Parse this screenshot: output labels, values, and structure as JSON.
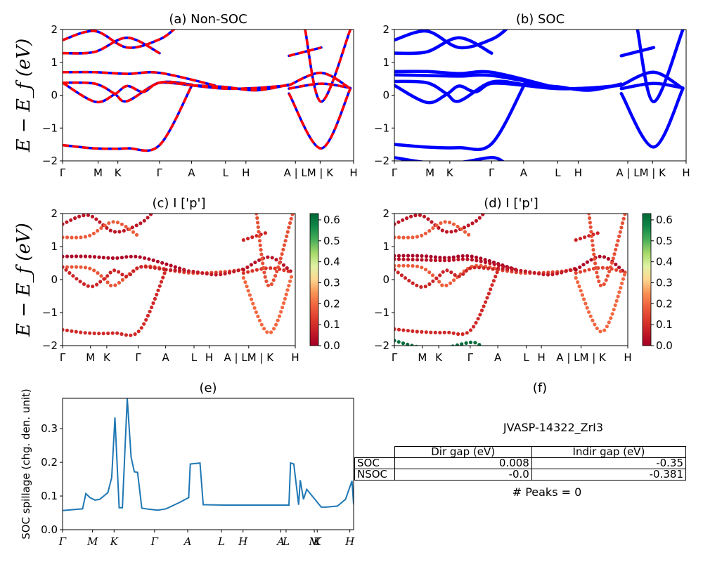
{
  "chart_data": [
    {
      "id": "a",
      "type": "line",
      "title": "(a) Non-SOC",
      "ylabel": "E − E_f (eV)",
      "ylim": [
        -2,
        2
      ],
      "yticks": [
        "2",
        "1",
        "0",
        "−1",
        "−2"
      ],
      "xticks": [
        "Γ",
        "M",
        "K",
        "Γ",
        "A",
        "L",
        "H",
        "A | L",
        "M | K",
        "H"
      ],
      "series": [
        {
          "color": "#0000ff",
          "style": "solid",
          "bands": [
            {
              "x": [
                0,
                1,
                2,
                3,
                3.5
              ],
              "y": [
                1.68,
                1.95,
                1.45,
                1.7,
                2.05
              ]
            },
            {
              "x": [
                0,
                1,
                2,
                3
              ],
              "y": [
                1.28,
                1.32,
                1.75,
                1.28
              ]
            },
            {
              "x": [
                0,
                1,
                2,
                3,
                4.7
              ],
              "y": [
                0.7,
                0.7,
                0.65,
                0.68,
                0.3
              ]
            },
            {
              "x": [
                0,
                1,
                1.6,
                2,
                3,
                4
              ],
              "y": [
                0.38,
                0.35,
                0.05,
                -0.18,
                0.38,
                0.32
              ]
            },
            {
              "x": [
                0,
                1,
                1.6,
                2,
                2.5,
                3,
                4
              ],
              "y": [
                0.38,
                -0.2,
                0.02,
                0.28,
                0.1,
                0.38,
                0.3
              ]
            },
            {
              "x": [
                0,
                1,
                2,
                3,
                4
              ],
              "y": [
                -1.52,
                -1.62,
                -1.62,
                -1.52,
                0.3
              ]
            },
            {
              "x": [
                4,
                5,
                6,
                7
              ],
              "y": [
                0.3,
                0.2,
                0.22,
                0.3
              ]
            },
            {
              "x": [
                4,
                5,
                6,
                7
              ],
              "y": [
                0.3,
                0.25,
                0.15,
                0.32
              ]
            },
            {
              "x": [
                7,
                8,
                8.9
              ],
              "y": [
                0.3,
                0.68,
                0.2
              ]
            },
            {
              "x": [
                7,
                8,
                8.9
              ],
              "y": [
                0.2,
                0.35,
                0.22
              ]
            },
            {
              "x": [
                7,
                8,
                8.9
              ],
              "y": [
                0.05,
                -1.62,
                0.2
              ]
            },
            {
              "x": [
                7,
                8
              ],
              "y": [
                1.2,
                1.45
              ]
            },
            {
              "x": [
                7.5,
                8,
                8.9
              ],
              "y": [
                2.0,
                -0.2,
                2.0
              ]
            }
          ]
        },
        {
          "color": "#ff0000",
          "style": "dashed",
          "same_bands_as": 0
        }
      ]
    },
    {
      "id": "b",
      "type": "line",
      "title": "(b) SOC",
      "ylim": [
        -2,
        2
      ],
      "yticks": [
        "2",
        "1",
        "0",
        "−1",
        "−2"
      ],
      "xticks": [
        "Γ",
        "M",
        "K",
        "Γ",
        "A",
        "L",
        "H",
        "A | L",
        "M | K",
        "H"
      ],
      "series": [
        {
          "color": "#0000ff",
          "style": "thick",
          "bands": [
            {
              "x": [
                0,
                1,
                2,
                3,
                3.5
              ],
              "y": [
                1.68,
                1.95,
                1.45,
                1.7,
                2.05
              ]
            },
            {
              "x": [
                0,
                1,
                2,
                3
              ],
              "y": [
                1.28,
                1.32,
                1.75,
                1.28
              ]
            },
            {
              "x": [
                0,
                1,
                2,
                3,
                4.7
              ],
              "y": [
                0.72,
                0.72,
                0.66,
                0.7,
                0.3
              ]
            },
            {
              "x": [
                0,
                1,
                2,
                3,
                4.7
              ],
              "y": [
                0.62,
                0.6,
                0.58,
                0.6,
                0.3
              ]
            },
            {
              "x": [
                0,
                1,
                1.6,
                2,
                3,
                4
              ],
              "y": [
                0.42,
                0.38,
                0.05,
                -0.18,
                0.4,
                0.32
              ]
            },
            {
              "x": [
                0,
                1,
                1.6,
                2,
                2.5,
                3,
                4
              ],
              "y": [
                0.3,
                -0.22,
                0.02,
                0.28,
                0.1,
                0.36,
                0.3
              ]
            },
            {
              "x": [
                0,
                1,
                2,
                3,
                4
              ],
              "y": [
                -1.5,
                -1.58,
                -1.6,
                -1.48,
                0.3
              ]
            },
            {
              "x": [
                0,
                1,
                2,
                3,
                3.4
              ],
              "y": [
                -1.9,
                -2.05,
                -2.05,
                -1.9,
                -2.05
              ]
            },
            {
              "x": [
                4,
                5,
                6,
                7
              ],
              "y": [
                0.3,
                0.2,
                0.22,
                0.3
              ]
            },
            {
              "x": [
                4,
                5,
                6,
                7
              ],
              "y": [
                0.34,
                0.26,
                0.15,
                0.34
              ]
            },
            {
              "x": [
                7,
                8,
                8.9
              ],
              "y": [
                0.3,
                0.7,
                0.2
              ]
            },
            {
              "x": [
                7,
                8,
                8.9
              ],
              "y": [
                0.2,
                0.36,
                0.22
              ]
            },
            {
              "x": [
                7,
                8,
                8.9
              ],
              "y": [
                0.05,
                -1.58,
                0.2
              ]
            },
            {
              "x": [
                7,
                8
              ],
              "y": [
                1.2,
                1.45
              ]
            },
            {
              "x": [
                7.5,
                8,
                8.9
              ],
              "y": [
                2.0,
                -0.2,
                2.0
              ]
            }
          ]
        }
      ]
    },
    {
      "id": "c",
      "type": "scatter",
      "title": "(c)  I ['p']",
      "ylabel": "E − E_f (eV)",
      "ylim": [
        -2,
        2
      ],
      "yticks": [
        "2",
        "1",
        "0",
        "−1",
        "−2"
      ],
      "xticks": [
        "Γ",
        "M",
        "K",
        "Γ",
        "A",
        "L",
        "H",
        "A | LM | K",
        "H"
      ],
      "colorbar": {
        "ticks": [
          "0.6",
          "0.5",
          "0.4",
          "0.3",
          "0.2",
          "0.1",
          "0.0"
        ],
        "range": [
          0,
          0.63
        ],
        "cmap": "RdYlGn"
      },
      "bands": [
        {
          "x": [
            0,
            1,
            2,
            3,
            3.5
          ],
          "y": [
            1.68,
            1.95,
            1.45,
            1.7,
            2.05
          ],
          "value": 0.05
        },
        {
          "x": [
            0,
            1,
            2,
            3
          ],
          "y": [
            1.28,
            1.32,
            1.75,
            1.28
          ],
          "value": 0.18
        },
        {
          "x": [
            0,
            1,
            2,
            3,
            4.7
          ],
          "y": [
            0.7,
            0.7,
            0.65,
            0.68,
            0.3
          ],
          "value": 0.02
        },
        {
          "x": [
            0,
            1,
            1.6,
            2,
            3,
            4
          ],
          "y": [
            0.38,
            0.35,
            0.05,
            -0.18,
            0.38,
            0.32
          ],
          "value": 0.17
        },
        {
          "x": [
            0,
            1,
            1.6,
            2,
            2.5,
            3,
            4
          ],
          "y": [
            0.38,
            -0.2,
            0.02,
            0.28,
            0.1,
            0.38,
            0.3
          ],
          "value": 0.08
        },
        {
          "x": [
            0,
            1,
            2,
            3,
            4
          ],
          "y": [
            -1.52,
            -1.62,
            -1.62,
            -1.52,
            0.3
          ],
          "value": 0.09
        },
        {
          "x": [
            4,
            5,
            6,
            7
          ],
          "y": [
            0.3,
            0.2,
            0.22,
            0.3
          ],
          "value": 0.14
        },
        {
          "x": [
            4,
            5,
            6,
            7
          ],
          "y": [
            0.3,
            0.25,
            0.15,
            0.32
          ],
          "value": 0.06
        },
        {
          "x": [
            7,
            8,
            8.9
          ],
          "y": [
            0.3,
            0.68,
            0.2
          ],
          "value": 0.04
        },
        {
          "x": [
            7,
            8,
            8.9
          ],
          "y": [
            0.2,
            0.35,
            0.22
          ],
          "value": 0.11
        },
        {
          "x": [
            7,
            8,
            8.9
          ],
          "y": [
            0.05,
            -1.62,
            0.2
          ],
          "value": 0.2
        },
        {
          "x": [
            7,
            8
          ],
          "y": [
            1.2,
            1.45
          ],
          "value": 0.08
        },
        {
          "x": [
            7.5,
            8,
            8.9
          ],
          "y": [
            2.0,
            -0.2,
            2.0
          ],
          "value": 0.16
        }
      ]
    },
    {
      "id": "d",
      "type": "scatter",
      "title": "(d) I ['p']",
      "ylim": [
        -2,
        2
      ],
      "yticks": [
        "2",
        "1",
        "0",
        "−1",
        "−2"
      ],
      "xticks": [
        "Γ",
        "M",
        "K",
        "Γ",
        "A",
        "L",
        "H",
        "A | LM | K",
        "H"
      ],
      "colorbar": {
        "ticks": [
          "0.6",
          "0.5",
          "0.4",
          "0.3",
          "0.2",
          "0.1",
          "0.0"
        ],
        "range": [
          0,
          0.63
        ],
        "cmap": "RdYlGn"
      },
      "bands": [
        {
          "x": [
            0,
            1,
            2,
            3,
            3.5
          ],
          "y": [
            1.68,
            1.95,
            1.45,
            1.7,
            2.05
          ],
          "value": 0.05
        },
        {
          "x": [
            0,
            1,
            2,
            3
          ],
          "y": [
            1.28,
            1.32,
            1.75,
            1.28
          ],
          "value": 0.18
        },
        {
          "x": [
            0,
            1,
            2,
            3,
            4.7
          ],
          "y": [
            0.72,
            0.72,
            0.66,
            0.7,
            0.3
          ],
          "value": 0.01
        },
        {
          "x": [
            0,
            1,
            2,
            3,
            4.7
          ],
          "y": [
            0.62,
            0.6,
            0.58,
            0.6,
            0.3
          ],
          "value": 0.04
        },
        {
          "x": [
            0,
            1,
            1.6,
            2,
            3,
            4
          ],
          "y": [
            0.42,
            0.38,
            0.05,
            -0.18,
            0.4,
            0.32
          ],
          "value": 0.18
        },
        {
          "x": [
            0,
            1,
            1.6,
            2,
            2.5,
            3,
            4
          ],
          "y": [
            0.3,
            -0.22,
            0.02,
            0.28,
            0.1,
            0.36,
            0.3
          ],
          "value": 0.08
        },
        {
          "x": [
            0,
            1,
            2,
            3,
            4
          ],
          "y": [
            -1.5,
            -1.58,
            -1.6,
            -1.48,
            0.3
          ],
          "value": 0.09
        },
        {
          "x": [
            0,
            1,
            2,
            3,
            3.4
          ],
          "y": [
            -1.85,
            -2.05,
            -2.05,
            -1.9,
            -2.05
          ],
          "value": 0.62
        },
        {
          "x": [
            4,
            5,
            6,
            7
          ],
          "y": [
            0.3,
            0.2,
            0.22,
            0.3
          ],
          "value": 0.14
        },
        {
          "x": [
            4,
            5,
            6,
            7
          ],
          "y": [
            0.34,
            0.26,
            0.15,
            0.34
          ],
          "value": 0.06
        },
        {
          "x": [
            7,
            8,
            8.9
          ],
          "y": [
            0.3,
            0.7,
            0.2
          ],
          "value": 0.02
        },
        {
          "x": [
            7,
            8,
            8.9
          ],
          "y": [
            0.2,
            0.36,
            0.22
          ],
          "value": 0.14
        },
        {
          "x": [
            7,
            8,
            8.9
          ],
          "y": [
            0.05,
            -1.58,
            0.2
          ],
          "value": 0.2
        },
        {
          "x": [
            7,
            8
          ],
          "y": [
            1.2,
            1.45
          ],
          "value": 0.08
        },
        {
          "x": [
            7.5,
            8,
            8.9
          ],
          "y": [
            2.0,
            -0.2,
            2.0
          ],
          "value": 0.16
        }
      ]
    },
    {
      "id": "e",
      "type": "line",
      "title": "(e)",
      "ylabel": "SOC spillage (chg. den. unit)",
      "ylim": [
        0,
        0.39
      ],
      "yticks": [
        "0.0",
        "0.1",
        "0.2",
        "0.3"
      ],
      "xticks": [
        "Γ",
        "M",
        "K",
        "Γ",
        "A",
        "L",
        "H",
        "A",
        "L",
        "M",
        "K",
        "H"
      ],
      "color": "#1f77b4",
      "series": [
        {
          "x": [
            0,
            0.62,
            0.72,
            0.85,
            1.0,
            1.15,
            1.4,
            1.52,
            1.62,
            1.75,
            1.85,
            2.0,
            2.12,
            2.22,
            2.32,
            2.45,
            2.65,
            2.95,
            3.2,
            3.6,
            3.9,
            3.95,
            4.25,
            4.35,
            4.4,
            5.0,
            6.0,
            7.0,
            7.05,
            7.15,
            7.3,
            7.35,
            7.45,
            7.55,
            8.0,
            8.15,
            8.5,
            8.75,
            8.95,
            9.0
          ],
          "y": [
            0.057,
            0.062,
            0.107,
            0.095,
            0.088,
            0.09,
            0.11,
            0.155,
            0.333,
            0.065,
            0.065,
            0.39,
            0.215,
            0.172,
            0.17,
            0.064,
            0.061,
            0.058,
            0.062,
            0.08,
            0.095,
            0.195,
            0.198,
            0.074,
            0.074,
            0.073,
            0.073,
            0.073,
            0.198,
            0.195,
            0.074,
            0.147,
            0.09,
            0.12,
            0.067,
            0.067,
            0.07,
            0.09,
            0.145,
            0.075
          ]
        }
      ]
    }
  ],
  "panel_f": {
    "title": "(f)",
    "jid": "JVASP-14322_ZrI3",
    "table_header": [
      "Dir gap (eV)",
      "Indir gap (eV)"
    ],
    "table_rows": [
      {
        "label": "SOC",
        "dir": "0.008",
        "indir": "-0.35"
      },
      {
        "label": "NSOC",
        "dir": "-0.0",
        "indir": "-0.381"
      }
    ],
    "peaks": "# Peaks = 0"
  }
}
